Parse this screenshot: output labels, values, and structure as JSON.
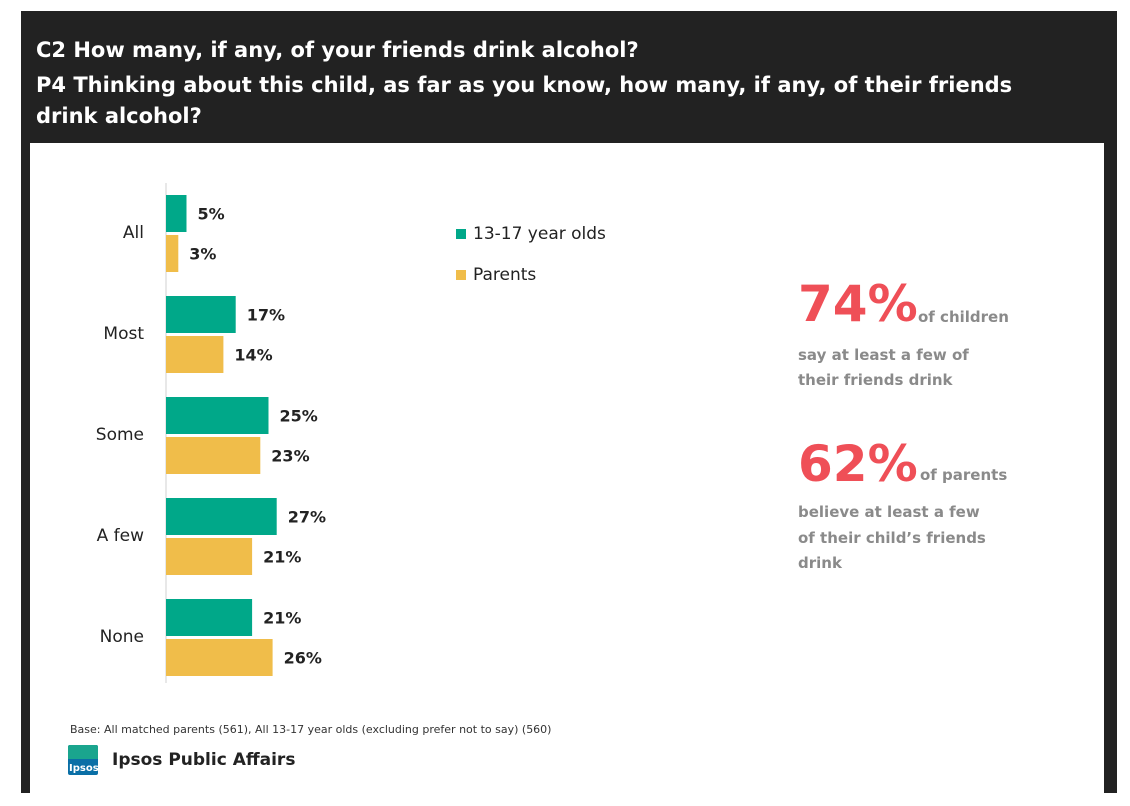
{
  "header": {
    "line1": "C2 How many, if any, of your friends drink alcohol?",
    "line2": "P4 Thinking about this child, as far as you know, how many, if any, of their friends",
    "line3": "drink alcohol?"
  },
  "colors": {
    "teens": "#00a889",
    "parents": "#f0bd4a",
    "highlight": "#ef4f57",
    "muted": "#8a8a8a",
    "frame": "#222222"
  },
  "chart_data": {
    "type": "bar",
    "orientation": "horizontal",
    "categories": [
      "All",
      "Most",
      "Some",
      "A few",
      "None"
    ],
    "series": [
      {
        "name": "13-17 year olds",
        "values": [
          5,
          17,
          25,
          27,
          21
        ],
        "labels": [
          "5%",
          "17%",
          "25%",
          "27%",
          "21%"
        ]
      },
      {
        "name": "Parents",
        "values": [
          3,
          14,
          23,
          21,
          26
        ],
        "labels": [
          "3%",
          "14%",
          "23%",
          "21%",
          "26%"
        ]
      }
    ],
    "legend_position": "top-right",
    "xlim": [
      0,
      100
    ],
    "grid": false
  },
  "callouts": {
    "children": {
      "percent": "74%",
      "suffix": "of children",
      "desc_line1": "say at least a few of",
      "desc_line2": "their friends drink"
    },
    "parents": {
      "percent": "62%",
      "suffix": "of parents",
      "desc_line1": "believe at least a few",
      "desc_line2": "of their child’s friends",
      "desc_line3": "drink"
    }
  },
  "footer": {
    "base": "Base:  All  matched parents (561), All 13-17 year olds (excluding prefer not to say) (560)",
    "logo_text": "Ipsos",
    "brand": "Ipsos Public Affairs"
  }
}
